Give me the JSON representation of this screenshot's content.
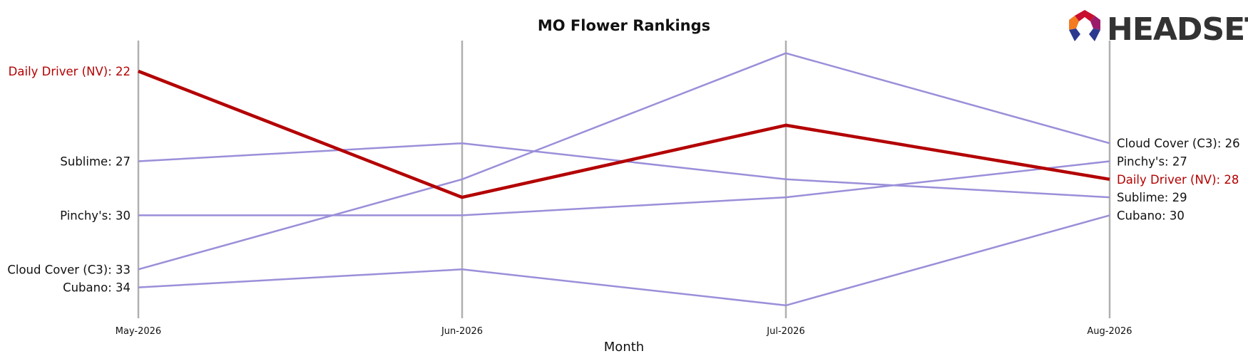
{
  "chart_data": {
    "type": "line",
    "title": "MO Flower Rankings",
    "xlabel": "Month",
    "ylabel": "",
    "x": [
      "May-2026",
      "Jun-2026",
      "Jul-2026",
      "Aug-2026"
    ],
    "y_inverted": true,
    "ylim": [
      19.5,
      35.5
    ],
    "grid": "vertical lines at each month",
    "series": [
      {
        "name": "Daily Driver (NV)",
        "values": [
          22,
          29,
          25,
          28
        ],
        "highlight": true,
        "color": "#b30000"
      },
      {
        "name": "Sublime",
        "values": [
          27,
          26,
          28,
          29
        ],
        "highlight": false,
        "color": "#9a8fd9"
      },
      {
        "name": "Pinchy's",
        "values": [
          30,
          30,
          29,
          27
        ],
        "highlight": false,
        "color": "#9a8fd9"
      },
      {
        "name": "Cloud Cover (C3)",
        "values": [
          33,
          28,
          21,
          26
        ],
        "highlight": false,
        "color": "#9a8fd9"
      },
      {
        "name": "Cubano",
        "values": [
          34,
          33,
          35,
          30
        ],
        "highlight": false,
        "color": "#9a8fd9"
      }
    ],
    "start_labels": [
      {
        "text": "Daily Driver (NV): 22",
        "series": "Daily Driver (NV)"
      },
      {
        "text": "Sublime: 27",
        "series": "Sublime"
      },
      {
        "text": "Pinchy's: 30",
        "series": "Pinchy's"
      },
      {
        "text": "Cloud Cover (C3): 33",
        "series": "Cloud Cover (C3)"
      },
      {
        "text": "Cubano: 34",
        "series": "Cubano"
      }
    ],
    "end_labels": [
      {
        "text": "Cloud Cover (C3): 26",
        "series": "Cloud Cover (C3)"
      },
      {
        "text": "Pinchy's: 27",
        "series": "Pinchy's"
      },
      {
        "text": "Daily Driver (NV): 28",
        "series": "Daily Driver (NV)"
      },
      {
        "text": "Sublime: 29",
        "series": "Sublime"
      },
      {
        "text": "Cubano: 30",
        "series": "Cubano"
      }
    ]
  },
  "logo": {
    "text": "HEADSET",
    "colors": [
      "#c8102e",
      "#f47b20",
      "#2b3a8f",
      "#9b1b6b"
    ]
  },
  "colors": {
    "highlight": "#b30000",
    "other": "#9a8fd9",
    "grid": "#b0b0b0",
    "label_default": "#111111"
  }
}
